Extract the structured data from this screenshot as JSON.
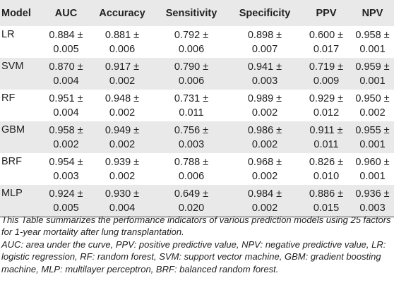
{
  "table": {
    "headers": [
      "Model",
      "AUC",
      "Accuracy",
      "Sensitivity",
      "Specificity",
      "PPV",
      "NPV"
    ],
    "rows": [
      {
        "model": "LR",
        "cells": [
          [
            "0.884 ±",
            "0.005"
          ],
          [
            "0.881 ±",
            "0.006"
          ],
          [
            "0.792 ±",
            "0.006"
          ],
          [
            "0.898 ±",
            "0.007"
          ],
          [
            "0.600 ±",
            "0.017"
          ],
          [
            "0.958 ±",
            "0.001"
          ]
        ]
      },
      {
        "model": "SVM",
        "cells": [
          [
            "0.870 ±",
            "0.004"
          ],
          [
            "0.917 ±",
            "0.002"
          ],
          [
            "0.790 ±",
            "0.006"
          ],
          [
            "0.941 ±",
            "0.003"
          ],
          [
            "0.719 ±",
            "0.009"
          ],
          [
            "0.959 ±",
            "0.001"
          ]
        ]
      },
      {
        "model": "RF",
        "cells": [
          [
            "0.951 ±",
            "0.004"
          ],
          [
            "0.948 ±",
            "0.002"
          ],
          [
            "0.731 ±",
            "0.011"
          ],
          [
            "0.989 ±",
            "0.002"
          ],
          [
            "0.929 ±",
            "0.012"
          ],
          [
            "0.950 ±",
            "0.002"
          ]
        ]
      },
      {
        "model": "GBM",
        "cells": [
          [
            "0.958 ±",
            "0.002"
          ],
          [
            "0.949 ±",
            "0.002"
          ],
          [
            "0.756 ±",
            "0.003"
          ],
          [
            "0.986 ±",
            "0.002"
          ],
          [
            "0.911 ±",
            "0.011"
          ],
          [
            "0.955 ±",
            "0.001"
          ]
        ]
      },
      {
        "model": "BRF",
        "cells": [
          [
            "0.954 ±",
            "0.003"
          ],
          [
            "0.939 ±",
            "0.002"
          ],
          [
            "0.788 ±",
            "0.006"
          ],
          [
            "0.968 ±",
            "0.002"
          ],
          [
            "0.826 ±",
            "0.010"
          ],
          [
            "0.960 ±",
            "0.001"
          ]
        ]
      },
      {
        "model": "MLP",
        "cells": [
          [
            "0.924 ±",
            "0.005"
          ],
          [
            "0.930 ±",
            "0.004"
          ],
          [
            "0.649 ±",
            "0.020"
          ],
          [
            "0.984 ±",
            "0.002"
          ],
          [
            "0.886 ±",
            "0.015"
          ],
          [
            "0.936 ±",
            "0.003"
          ]
        ]
      }
    ]
  },
  "footnotes": {
    "summary": "This Table summarizes the performance indicators of various prediction models using 25 factors for 1-year mortality after lung transplantation.",
    "abbreviations": "AUC: area under the curve, PPV: positive predictive value, NPV: negative predictive value, LR: logistic regression, RF: random forest, SVM: support vector machine, GBM: gradient boosting machine, MLP: multilayer perceptron, BRF: balanced random forest."
  }
}
